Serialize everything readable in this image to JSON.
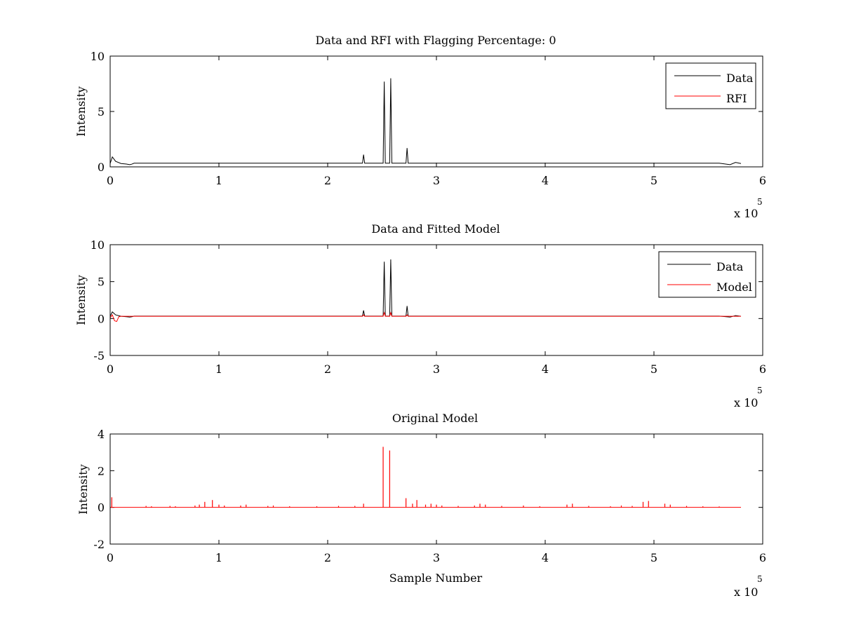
{
  "chart_data": [
    {
      "type": "line",
      "title": "Data and RFI with Flagging Percentage: 0",
      "xlabel": "",
      "ylabel": "Intensity",
      "xlim": [
        0,
        600000
      ],
      "ylim": [
        0,
        10
      ],
      "xticks": [
        0,
        100000,
        200000,
        300000,
        400000,
        500000,
        600000
      ],
      "xtick_labels": [
        "0",
        "1",
        "2",
        "3",
        "4",
        "5",
        "6"
      ],
      "yticks": [
        0,
        5,
        10
      ],
      "ytick_labels": [
        "0",
        "5",
        "10"
      ],
      "x_multiplier_base": "x 10",
      "x_multiplier_exponent": "5",
      "legend_position": "top-right",
      "series": [
        {
          "name": "Data",
          "color": "#000000",
          "baseline": 0.33,
          "x": [
            0,
            2000,
            5000,
            10000,
            15000,
            18000,
            20000,
            22000,
            40000,
            100000,
            200000,
            232000,
            233000,
            234000,
            251000,
            252000,
            253000,
            257000,
            258000,
            259000,
            272000,
            273000,
            274000,
            300000,
            400000,
            500000,
            560000,
            570000,
            575000,
            580000
          ],
          "y": [
            0.3,
            0.9,
            0.5,
            0.3,
            0.25,
            0.2,
            0.25,
            0.33,
            0.33,
            0.33,
            0.33,
            0.33,
            1.1,
            0.33,
            0.33,
            7.7,
            0.33,
            0.33,
            8.0,
            0.33,
            0.33,
            1.7,
            0.33,
            0.33,
            0.33,
            0.33,
            0.33,
            0.2,
            0.4,
            0.3
          ]
        },
        {
          "name": "RFI",
          "color": "#ff0000",
          "x": [],
          "y": []
        }
      ]
    },
    {
      "type": "line",
      "title": "Data and Fitted Model",
      "xlabel": "",
      "ylabel": "Intensity",
      "xlim": [
        0,
        600000
      ],
      "ylim": [
        -5,
        10
      ],
      "xticks": [
        0,
        100000,
        200000,
        300000,
        400000,
        500000,
        600000
      ],
      "xtick_labels": [
        "0",
        "1",
        "2",
        "3",
        "4",
        "5",
        "6"
      ],
      "yticks": [
        -5,
        0,
        5,
        10
      ],
      "ytick_labels": [
        "-5",
        "0",
        "5",
        "10"
      ],
      "x_multiplier_base": "x 10",
      "x_multiplier_exponent": "5",
      "legend_position": "top-right",
      "series": [
        {
          "name": "Data",
          "color": "#000000",
          "x": [
            0,
            2000,
            5000,
            10000,
            15000,
            18000,
            20000,
            22000,
            40000,
            100000,
            200000,
            232000,
            233000,
            234000,
            251000,
            252000,
            253000,
            257000,
            258000,
            259000,
            272000,
            273000,
            274000,
            300000,
            400000,
            500000,
            560000,
            570000,
            575000,
            580000
          ],
          "y": [
            0.3,
            0.9,
            0.5,
            0.3,
            0.25,
            0.2,
            0.25,
            0.33,
            0.33,
            0.33,
            0.33,
            0.33,
            1.1,
            0.33,
            0.33,
            7.7,
            0.33,
            0.33,
            8.0,
            0.33,
            0.33,
            1.7,
            0.33,
            0.33,
            0.33,
            0.33,
            0.33,
            0.2,
            0.4,
            0.3
          ]
        },
        {
          "name": "Model",
          "color": "#ff0000",
          "x": [
            0,
            2000,
            4000,
            6000,
            8000,
            10000,
            20000,
            100000,
            200000,
            232000,
            233000,
            234000,
            251000,
            252000,
            253000,
            257000,
            258000,
            259000,
            272000,
            273000,
            274000,
            400000,
            580000
          ],
          "y": [
            0.1,
            0.5,
            -0.3,
            -0.4,
            0.25,
            0.3,
            0.3,
            0.3,
            0.3,
            0.3,
            0.5,
            0.3,
            0.3,
            0.8,
            0.3,
            0.3,
            0.8,
            0.3,
            0.3,
            0.5,
            0.3,
            0.3,
            0.3
          ]
        }
      ]
    },
    {
      "type": "line",
      "title": "Original Model",
      "xlabel": "Sample Number",
      "ylabel": "Intensity",
      "xlim": [
        0,
        600000
      ],
      "ylim": [
        -2,
        4
      ],
      "xticks": [
        0,
        100000,
        200000,
        300000,
        400000,
        500000,
        600000
      ],
      "xtick_labels": [
        "0",
        "1",
        "2",
        "3",
        "4",
        "5",
        "6"
      ],
      "yticks": [
        -2,
        0,
        2,
        4
      ],
      "ytick_labels": [
        "-2",
        "0",
        "2",
        "4"
      ],
      "x_multiplier_base": "x 10",
      "x_multiplier_exponent": "5",
      "series": [
        {
          "color": "#ff0000",
          "baseline": 0,
          "x_range": [
            0,
            580000
          ],
          "spikes": [
            [
              1500,
              0.55
            ],
            [
              33000,
              0.08
            ],
            [
              38000,
              0.06
            ],
            [
              55000,
              0.08
            ],
            [
              60000,
              0.06
            ],
            [
              78000,
              0.1
            ],
            [
              82000,
              0.15
            ],
            [
              87000,
              0.3
            ],
            [
              94000,
              0.4
            ],
            [
              100000,
              0.15
            ],
            [
              105000,
              0.1
            ],
            [
              120000,
              0.1
            ],
            [
              125000,
              0.15
            ],
            [
              145000,
              0.08
            ],
            [
              150000,
              0.1
            ],
            [
              165000,
              0.06
            ],
            [
              190000,
              0.06
            ],
            [
              210000,
              0.08
            ],
            [
              225000,
              0.08
            ],
            [
              233000,
              0.2
            ],
            [
              251000,
              3.3
            ],
            [
              257000,
              3.1
            ],
            [
              272000,
              0.5
            ],
            [
              278000,
              0.2
            ],
            [
              282000,
              0.4
            ],
            [
              290000,
              0.15
            ],
            [
              295000,
              0.2
            ],
            [
              300000,
              0.15
            ],
            [
              305000,
              0.1
            ],
            [
              320000,
              0.08
            ],
            [
              335000,
              0.1
            ],
            [
              340000,
              0.2
            ],
            [
              345000,
              0.15
            ],
            [
              360000,
              0.08
            ],
            [
              380000,
              0.1
            ],
            [
              395000,
              0.06
            ],
            [
              420000,
              0.15
            ],
            [
              425000,
              0.2
            ],
            [
              440000,
              0.08
            ],
            [
              460000,
              0.06
            ],
            [
              470000,
              0.1
            ],
            [
              480000,
              0.08
            ],
            [
              490000,
              0.3
            ],
            [
              495000,
              0.35
            ],
            [
              510000,
              0.2
            ],
            [
              515000,
              0.15
            ],
            [
              530000,
              0.08
            ],
            [
              545000,
              0.06
            ],
            [
              560000,
              0.05
            ]
          ]
        }
      ]
    }
  ]
}
